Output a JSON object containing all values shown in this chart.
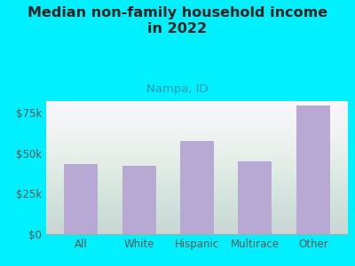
{
  "title": "Median non-family household income\nin 2022",
  "subtitle": "Nampa, ID",
  "categories": [
    "All",
    "White",
    "Hispanic",
    "Multirace",
    "Other"
  ],
  "values": [
    43000,
    42000,
    57500,
    45000,
    79000
  ],
  "bar_color": "#b8a9d4",
  "background_outer": "#00f0ff",
  "background_plot_top": "#e8f5e2",
  "background_plot_bottom": "#f8f5fc",
  "ylabel_color": "#555555",
  "title_color": "#222222",
  "subtitle_color": "#2299aa",
  "ylim": [
    0,
    82000
  ],
  "yticks": [
    0,
    25000,
    50000,
    75000
  ],
  "ytick_labels": [
    "$0",
    "$25k",
    "$50k",
    "$75k"
  ],
  "title_fontsize": 11.5,
  "subtitle_fontsize": 9.5,
  "tick_fontsize": 8.5
}
